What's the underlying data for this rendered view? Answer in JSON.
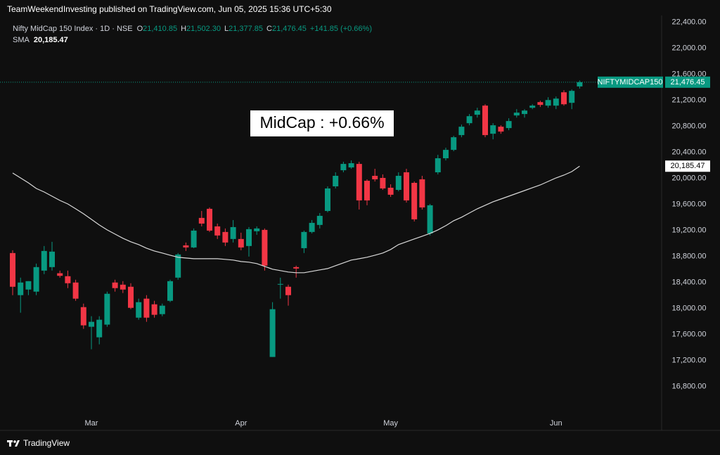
{
  "header": "TeamWeekendInvesting published on TradingView.com, Jun 05, 2025 15:36 UTC+5:30",
  "footer": "TradingView",
  "chart_data": {
    "type": "candlestick",
    "annotation": "MidCap : +0.66%",
    "ticker": "NIFTYMIDCAP150",
    "categories": [
      null,
      null,
      null,
      null,
      null,
      null,
      null,
      null,
      null,
      null,
      "Mar",
      null,
      null,
      null,
      null,
      null,
      null,
      null,
      null,
      null,
      null,
      null,
      null,
      null,
      null,
      null,
      null,
      null,
      null,
      "Apr",
      null,
      null,
      null,
      null,
      null,
      null,
      null,
      null,
      null,
      null,
      null,
      null,
      null,
      null,
      null,
      null,
      null,
      null,
      "May",
      null,
      null,
      null,
      null,
      null,
      null,
      null,
      null,
      null,
      null,
      null,
      null,
      null,
      null,
      null,
      null,
      null,
      null,
      null,
      null,
      "Jun",
      null,
      null,
      null
    ],
    "ylim": [
      16200,
      22480
    ],
    "yticks": [
      {
        "value": 16800,
        "label": "16,800.00"
      },
      {
        "value": 17200,
        "label": "17,200.00"
      },
      {
        "value": 17600,
        "label": "17,600.00"
      },
      {
        "value": 18000,
        "label": "18,000.00"
      },
      {
        "value": 18400,
        "label": "18,400.00"
      },
      {
        "value": 18800,
        "label": "18,800.00"
      },
      {
        "value": 19200,
        "label": "19,200.00"
      },
      {
        "value": 19600,
        "label": "19,600.00"
      },
      {
        "value": 20000,
        "label": "20,000.00"
      },
      {
        "value": 20400,
        "label": "20,400.00"
      },
      {
        "value": 20800,
        "label": "20,800.00"
      },
      {
        "value": 21200,
        "label": "21,200.00"
      },
      {
        "value": 21600,
        "label": "21,600.00"
      },
      {
        "value": 22000,
        "label": "22,000.00"
      },
      {
        "value": 22400,
        "label": "22,400.00"
      }
    ],
    "grid": false,
    "legend": {
      "items": [
        {
          "key": "O",
          "label": "21,410.85"
        },
        {
          "key": "H",
          "label": "21,502.30"
        },
        {
          "key": "L",
          "label": "21,377.85"
        },
        {
          "key": "C",
          "label": "21,476.45"
        }
      ],
      "change": "+141.85 (+0.66%)"
    },
    "series": [
      {
        "name": "Nifty MidCap 150 Index · 1D · NSE",
        "up_color": "#089981",
        "down_color": "#f23645",
        "last_label": "21,476.45",
        "open": [
          18850,
          18203,
          18289,
          18257,
          18580,
          18634,
          18540,
          18494,
          18397,
          18019,
          17717,
          17555,
          17750,
          18397,
          18364,
          18332,
          17857,
          18149,
          18062,
          17911,
          18116,
          18472,
          18968,
          18936,
          19390,
          19530,
          19260,
          19174,
          19066,
          19066,
          18958,
          19185,
          19206,
          17253,
          18364,
          18332,
          18634,
          18925,
          19174,
          19282,
          19497,
          19875,
          20123,
          20166,
          20220,
          19961,
          20037,
          20005,
          19854,
          19821,
          20091,
          19929,
          19983,
          19152,
          20091,
          20307,
          20436,
          20663,
          20846,
          20976,
          21116,
          20684,
          20792,
          20771,
          20965,
          20987,
          21083,
          21170,
          21116,
          21116,
          21321,
          21159,
          21410.85
        ],
        "high": [
          18893,
          18472,
          18418,
          18688,
          18958,
          19023,
          18580,
          18580,
          18440,
          18073,
          17879,
          17879,
          18257,
          18440,
          18418,
          18386,
          18149,
          18203,
          18116,
          18073,
          18440,
          18850,
          19012,
          19228,
          19497,
          19551,
          19303,
          19228,
          19357,
          19163,
          19249,
          19260,
          19228,
          18095,
          18472,
          18364,
          18656,
          19195,
          19357,
          19465,
          19875,
          20091,
          20253,
          20274,
          20253,
          19983,
          20145,
          20059,
          19907,
          20091,
          20145,
          19951,
          20037,
          19605,
          20360,
          20469,
          20652,
          20825,
          20987,
          21083,
          21137,
          20846,
          20814,
          20922,
          21062,
          21062,
          21137,
          21192,
          21245,
          21256,
          21353,
          21364,
          21502.3
        ],
        "low": [
          18203,
          17933,
          18203,
          18203,
          18526,
          18580,
          18472,
          18311,
          18116,
          17685,
          17372,
          17447,
          17717,
          18257,
          18235,
          17987,
          17825,
          17793,
          17857,
          17879,
          18095,
          18440,
          18882,
          18925,
          19260,
          19174,
          19066,
          18958,
          19012,
          18893,
          18796,
          19130,
          18580,
          17253,
          18149,
          18041,
          18472,
          18850,
          19152,
          19228,
          19476,
          19843,
          20091,
          20145,
          19519,
          19584,
          19950,
          19821,
          19713,
          19799,
          19627,
          19336,
          19519,
          19120,
          20059,
          20274,
          20415,
          20630,
          20814,
          20932,
          20630,
          20598,
          20684,
          20738,
          20932,
          20932,
          21062,
          21095,
          21083,
          21062,
          21116,
          21062,
          21377.85
        ],
        "close": [
          18332,
          18397,
          18418,
          18634,
          18882,
          18872,
          18500,
          18386,
          18149,
          17739,
          17793,
          17825,
          18224,
          18311,
          18289,
          18008,
          18095,
          17857,
          17901,
          18041,
          18418,
          18828,
          18936,
          19195,
          19303,
          19195,
          19120,
          19012,
          19249,
          18936,
          19217,
          19228,
          18656,
          17987,
          18375,
          18203,
          18612,
          19174,
          19314,
          19422,
          19843,
          20037,
          20220,
          20231,
          19659,
          19659,
          19983,
          19843,
          19746,
          20037,
          19659,
          19368,
          19551,
          19584,
          20307,
          20436,
          20630,
          20792,
          20954,
          21040,
          20663,
          20814,
          20717,
          20879,
          21008,
          21040,
          21116,
          21127,
          21202,
          21224,
          21137,
          21343,
          21476.45
        ]
      },
      {
        "name": "SMA",
        "color": "#d9d9d9",
        "value_label": "20,185.47",
        "values": [
          20080,
          20005,
          19929,
          19843,
          19789,
          19724,
          19659,
          19605,
          19530,
          19454,
          19368,
          19282,
          19206,
          19141,
          19077,
          19023,
          18980,
          18925,
          18882,
          18850,
          18817,
          18785,
          18774,
          18763,
          18763,
          18763,
          18763,
          18753,
          18742,
          18720,
          18710,
          18688,
          18645,
          18602,
          18580,
          18559,
          18548,
          18548,
          18569,
          18591,
          18612,
          18656,
          18699,
          18742,
          18763,
          18785,
          18817,
          18850,
          18904,
          18980,
          19023,
          19066,
          19109,
          19152,
          19206,
          19271,
          19346,
          19400,
          19465,
          19530,
          19584,
          19638,
          19681,
          19724,
          19767,
          19810,
          19854,
          19897,
          19951,
          20005,
          20048,
          20102,
          20185.47
        ]
      }
    ]
  }
}
